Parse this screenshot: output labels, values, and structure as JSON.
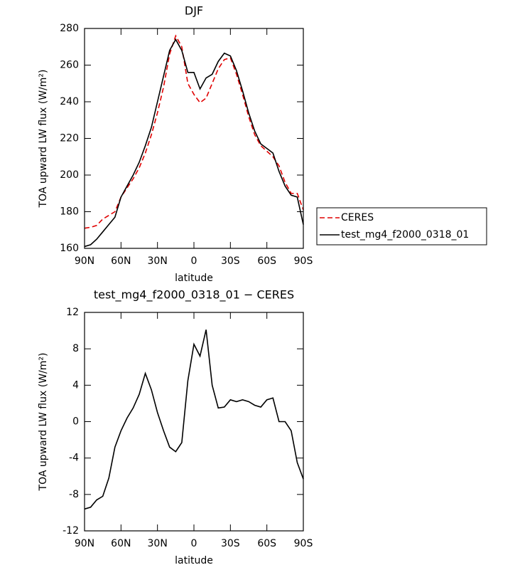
{
  "chart_data": [
    {
      "type": "line",
      "title": "DJF",
      "xlabel": "latitude",
      "ylabel": "TOA upward LW flux (W/m²)",
      "x": [
        90,
        85,
        80,
        75,
        70,
        65,
        60,
        55,
        50,
        45,
        40,
        35,
        30,
        25,
        20,
        15,
        10,
        5,
        0,
        -5,
        -10,
        -15,
        -20,
        -25,
        -30,
        -35,
        -40,
        -45,
        -50,
        -55,
        -60,
        -65,
        -70,
        -75,
        -80,
        -85,
        -90
      ],
      "series": [
        {
          "name": "CERES",
          "color": "#e00000",
          "linestyle": "dashed",
          "values": [
            171,
            171.5,
            172.5,
            176,
            178,
            180,
            188,
            193,
            198,
            204,
            212,
            222,
            234,
            248,
            266,
            276,
            270,
            250,
            244,
            239.5,
            242,
            250,
            258,
            263,
            264,
            255,
            244,
            232,
            222,
            216,
            213,
            210,
            205,
            196,
            190,
            190,
            181
          ]
        },
        {
          "name": "test_mg4_f2000_0318_01",
          "color": "#000000",
          "linestyle": "solid",
          "values": [
            161,
            162,
            165,
            169,
            173,
            177,
            188,
            194,
            200,
            207,
            216,
            226,
            240,
            254,
            268,
            274,
            268,
            256,
            256,
            247,
            253,
            255,
            262,
            266.5,
            265,
            257,
            246,
            234,
            224,
            217,
            214.5,
            212,
            202,
            194,
            189,
            188,
            173
          ]
        }
      ],
      "xlim": [
        90,
        -90
      ],
      "ylim": [
        160,
        280
      ],
      "xticks": [
        {
          "value": 90,
          "label": "90N"
        },
        {
          "value": 60,
          "label": "60N"
        },
        {
          "value": 30,
          "label": "30N"
        },
        0,
        {
          "value": -30,
          "label": "30S"
        },
        {
          "value": -60,
          "label": "60S"
        },
        {
          "value": -90,
          "label": "90S"
        }
      ],
      "yticks": [
        160,
        180,
        200,
        220,
        240,
        260,
        280
      ],
      "legend": "right"
    },
    {
      "type": "line",
      "title": "test_mg4_f2000_0318_01 − CERES",
      "xlabel": "latitude",
      "ylabel": "TOA upward LW flux (W/m²)",
      "x": [
        90,
        85,
        80,
        75,
        70,
        65,
        60,
        55,
        50,
        45,
        40,
        35,
        30,
        25,
        20,
        15,
        10,
        5,
        0,
        -5,
        -10,
        -15,
        -20,
        -25,
        -30,
        -35,
        -40,
        -45,
        -50,
        -55,
        -60,
        -65,
        -70,
        -75,
        -80,
        -85,
        -90
      ],
      "series": [
        {
          "color": "#000000",
          "linestyle": "solid",
          "values": [
            -9.6,
            -9.4,
            -8.6,
            -8.2,
            -6.2,
            -2.8,
            -1.0,
            0.4,
            1.5,
            3.0,
            5.3,
            3.5,
            1.0,
            -1.0,
            -2.8,
            -3.3,
            -2.3,
            4.5,
            8.5,
            7.2,
            10.1,
            4.0,
            1.5,
            1.6,
            2.4,
            2.2,
            2.4,
            2.2,
            1.8,
            1.6,
            2.4,
            2.6,
            0.0,
            0.0,
            -1.0,
            -4.5,
            -6.3
          ]
        }
      ],
      "xlim": [
        90,
        -90
      ],
      "ylim": [
        -12,
        12
      ],
      "xticks": [
        {
          "value": 90,
          "label": "90N"
        },
        {
          "value": 60,
          "label": "60N"
        },
        {
          "value": 30,
          "label": "30N"
        },
        0,
        {
          "value": -30,
          "label": "30S"
        },
        {
          "value": -60,
          "label": "60S"
        },
        {
          "value": -90,
          "label": "90S"
        }
      ],
      "yticks": [
        -12,
        -8,
        -4,
        0,
        4,
        8,
        12
      ]
    }
  ]
}
